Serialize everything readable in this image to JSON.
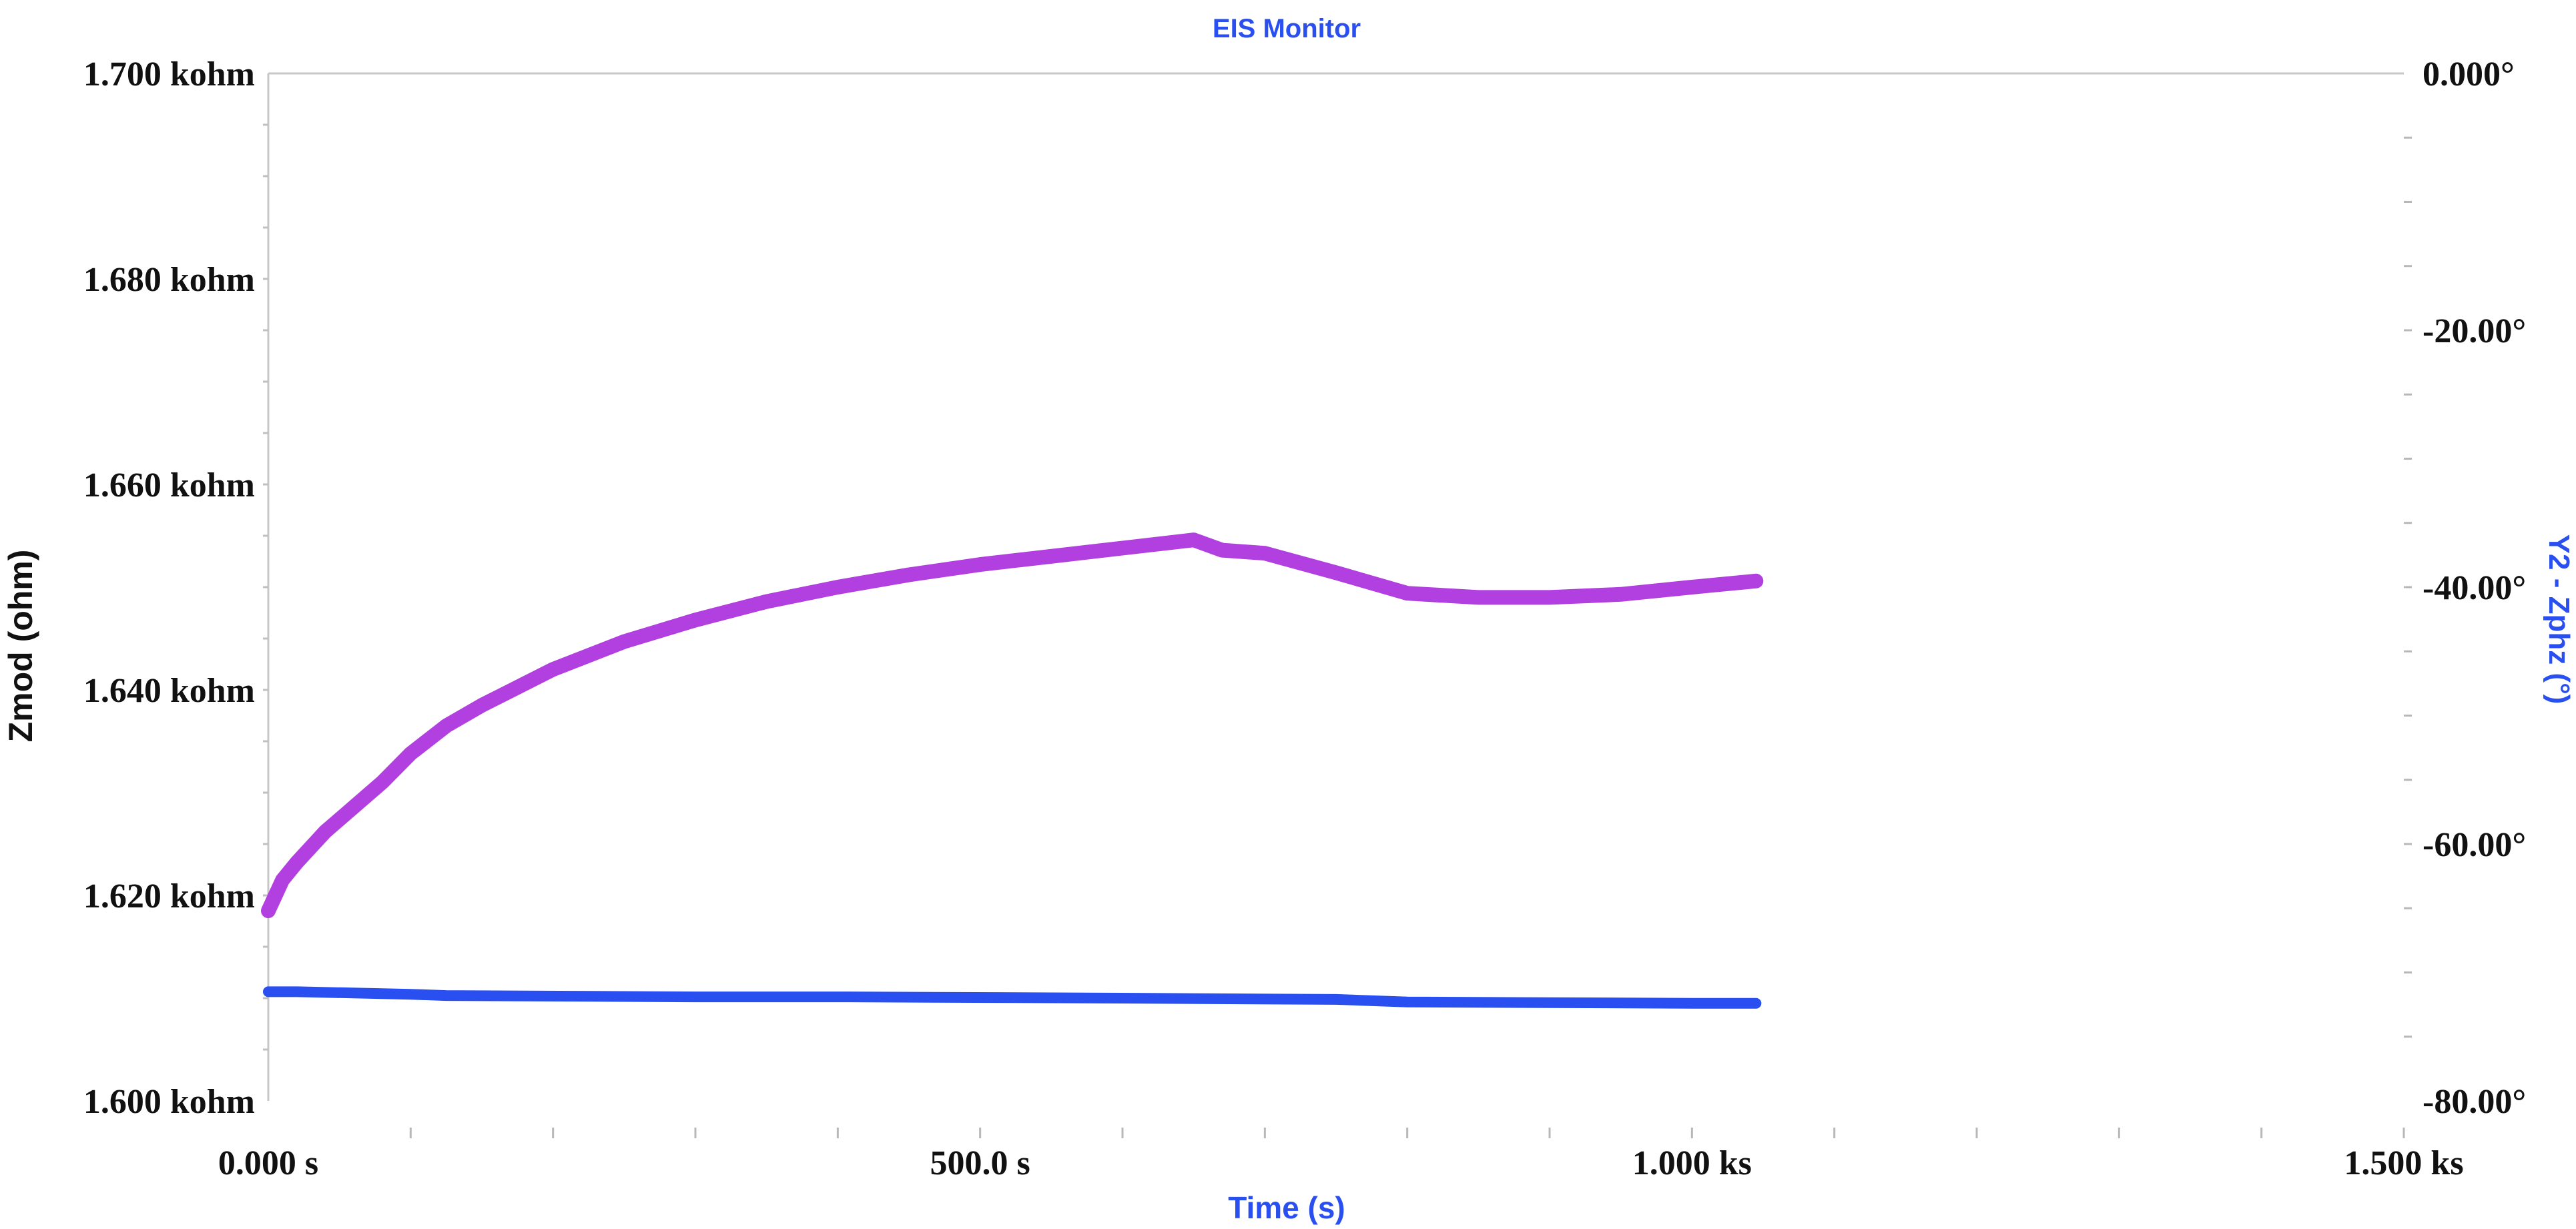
{
  "chart_data": {
    "type": "line",
    "title": "EIS Monitor",
    "xlabel": "Time (s)",
    "ylabel": "Zmod (ohm)",
    "y2label": "Y2 - Zphz (°)",
    "xlim": [
      0,
      1500
    ],
    "ylim": [
      1600,
      1700
    ],
    "y2lim": [
      -80,
      0
    ],
    "grid": false,
    "x_ticks": [
      {
        "value": 0,
        "label": "0.000 s"
      },
      {
        "value": 500,
        "label": "500.0 s"
      },
      {
        "value": 1000,
        "label": "1.000 ks"
      },
      {
        "value": 1500,
        "label": "1.500 ks"
      }
    ],
    "y_ticks": [
      {
        "value": 1600,
        "label": "1.600 kohm"
      },
      {
        "value": 1620,
        "label": "1.620 kohm"
      },
      {
        "value": 1640,
        "label": "1.640 kohm"
      },
      {
        "value": 1660,
        "label": "1.660 kohm"
      },
      {
        "value": 1680,
        "label": "1.680 kohm"
      },
      {
        "value": 1700,
        "label": "1.700 kohm"
      }
    ],
    "y2_ticks": [
      {
        "value": 0,
        "label": "0.000°"
      },
      {
        "value": -20,
        "label": "-20.00°"
      },
      {
        "value": -40,
        "label": "-40.00°"
      },
      {
        "value": -60,
        "label": "-60.00°"
      },
      {
        "value": -80,
        "label": "-80.00°"
      }
    ],
    "series": [
      {
        "axis": "y",
        "color": "#b23fe0",
        "x": [
          0,
          10,
          20,
          40,
          60,
          80,
          100,
          125,
          150,
          200,
          250,
          300,
          350,
          400,
          450,
          500,
          550,
          600,
          650,
          670,
          700,
          750,
          800,
          850,
          900,
          950,
          1000,
          1045
        ],
        "y": [
          1618.5,
          1621.5,
          1623.2,
          1626.2,
          1628.6,
          1631.0,
          1633.8,
          1636.5,
          1638.5,
          1642.0,
          1644.7,
          1646.8,
          1648.6,
          1650.0,
          1651.2,
          1652.2,
          1653.0,
          1653.8,
          1654.6,
          1653.6,
          1653.3,
          1651.4,
          1649.4,
          1649.0,
          1649.0,
          1649.3,
          1650.0,
          1650.6
        ]
      },
      {
        "axis": "y2",
        "color": "#2a4ff0",
        "x": [
          0,
          20,
          100,
          125,
          300,
          400,
          600,
          750,
          800,
          1000,
          1045
        ],
        "y": [
          -71.5,
          -71.5,
          -71.7,
          -71.8,
          -71.9,
          -71.9,
          -72.0,
          -72.1,
          -72.3,
          -72.4,
          -72.4
        ]
      }
    ]
  }
}
